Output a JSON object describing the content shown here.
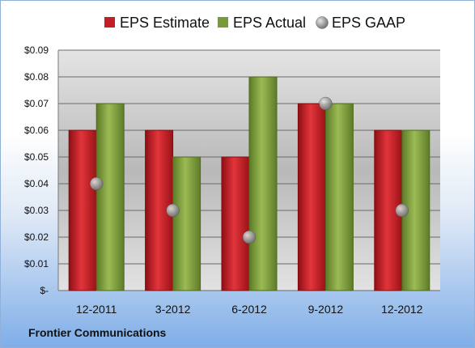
{
  "chart_data": {
    "type": "bar",
    "categories": [
      "12-2011",
      "3-2012",
      "6-2012",
      "9-2012",
      "12-2012"
    ],
    "series": [
      {
        "name": "EPS Estimate",
        "kind": "bar",
        "values": [
          0.06,
          0.06,
          0.05,
          0.07,
          0.06
        ],
        "color": "#c41e24"
      },
      {
        "name": "EPS Actual",
        "kind": "bar",
        "values": [
          0.07,
          0.05,
          0.08,
          0.07,
          0.06
        ],
        "color": "#7a9a3a"
      },
      {
        "name": "EPS GAAP",
        "kind": "marker",
        "values": [
          0.04,
          0.03,
          0.02,
          0.07,
          0.03
        ],
        "color": "#a8a8a8"
      }
    ],
    "y_ticks": [
      "$-",
      "$0.01",
      "$0.02",
      "$0.03",
      "$0.04",
      "$0.05",
      "$0.06",
      "$0.07",
      "$0.08",
      "$0.09"
    ],
    "ylim": [
      0,
      0.09
    ],
    "grid": true,
    "legend_position": "top"
  },
  "footer": {
    "company": "Frontier Communications"
  }
}
